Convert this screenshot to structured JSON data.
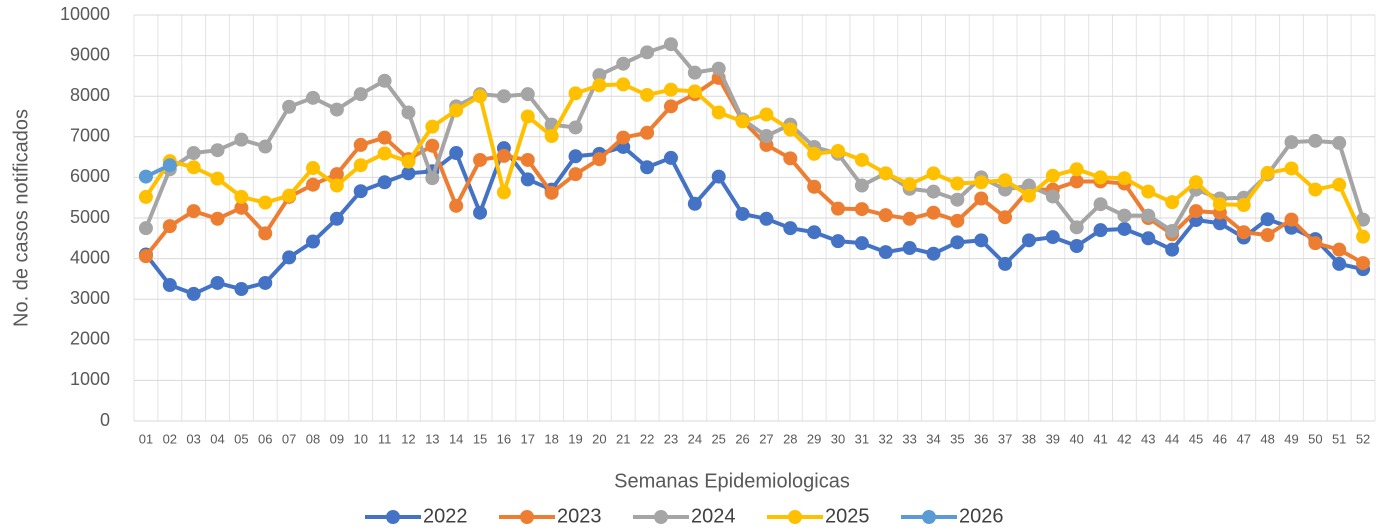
{
  "chart_data": {
    "type": "line",
    "x_label": "Semanas Epidemiologicas",
    "y_label": "No. de casos notificados",
    "categories": [
      "01",
      "02",
      "03",
      "04",
      "05",
      "06",
      "07",
      "08",
      "09",
      "10",
      "11",
      "12",
      "13",
      "14",
      "15",
      "16",
      "17",
      "18",
      "19",
      "20",
      "21",
      "22",
      "23",
      "24",
      "25",
      "26",
      "27",
      "28",
      "29",
      "30",
      "31",
      "32",
      "33",
      "34",
      "35",
      "36",
      "37",
      "38",
      "39",
      "40",
      "41",
      "42",
      "43",
      "44",
      "45",
      "46",
      "47",
      "48",
      "49",
      "50",
      "51",
      "52"
    ],
    "ylim": [
      0,
      10000
    ],
    "yticks": [
      0,
      1000,
      2000,
      3000,
      4000,
      5000,
      6000,
      7000,
      8000,
      9000,
      10000
    ],
    "grid": true,
    "legend": "bottom",
    "series": [
      {
        "name": "2022",
        "color": "#4472c4",
        "values": [
          4100,
          3350,
          3130,
          3400,
          3250,
          3400,
          4030,
          4420,
          4980,
          5660,
          5880,
          6100,
          6150,
          6600,
          5130,
          6720,
          5950,
          5700,
          6520,
          6580,
          6750,
          6250,
          6480,
          5350,
          6020,
          5100,
          4980,
          4750,
          4650,
          4430,
          4380,
          4160,
          4260,
          4120,
          4400,
          4450,
          3870,
          4450,
          4530,
          4310,
          4700,
          4730,
          4500,
          4220,
          4950,
          4870,
          4520,
          4970,
          4760,
          4480,
          3870,
          3740
        ]
      },
      {
        "name": "2023",
        "color": "#ed7d31",
        "values": [
          4060,
          4800,
          5170,
          4980,
          5250,
          4620,
          5520,
          5820,
          6080,
          6800,
          6980,
          6450,
          6780,
          5300,
          6430,
          6530,
          6430,
          5620,
          6080,
          6450,
          6980,
          7100,
          7750,
          8050,
          8450,
          7400,
          6800,
          6470,
          5770,
          5230,
          5220,
          5070,
          4980,
          5130,
          4930,
          5480,
          5020,
          5700,
          5700,
          5900,
          5900,
          5850,
          5000,
          4600,
          5170,
          5130,
          4650,
          4580,
          4960,
          4380,
          4220,
          3890
        ]
      },
      {
        "name": "2024",
        "color": "#a5a5a5",
        "values": [
          4750,
          6200,
          6600,
          6670,
          6930,
          6760,
          7740,
          7960,
          7670,
          8050,
          8380,
          7600,
          5980,
          7750,
          8050,
          8000,
          8050,
          7300,
          7230,
          8520,
          8800,
          9080,
          9280,
          8580,
          8680,
          7430,
          7020,
          7300,
          6750,
          6580,
          5800,
          6100,
          5720,
          5650,
          5450,
          6000,
          5700,
          5800,
          5530,
          4770,
          5340,
          5060,
          5060,
          4680,
          5700,
          5480,
          5500,
          6070,
          6870,
          6900,
          6850,
          4960
        ]
      },
      {
        "name": "2025",
        "color": "#ffc000",
        "values": [
          5520,
          6400,
          6250,
          5970,
          5520,
          5380,
          5550,
          6230,
          5800,
          6300,
          6590,
          6390,
          7250,
          7650,
          8000,
          5630,
          7500,
          7020,
          8070,
          8270,
          8290,
          8030,
          8160,
          8120,
          7600,
          7380,
          7550,
          7180,
          6580,
          6650,
          6430,
          6100,
          5830,
          6100,
          5850,
          5880,
          5930,
          5550,
          6040,
          6200,
          6000,
          5980,
          5650,
          5390,
          5880,
          5340,
          5320,
          6110,
          6220,
          5700,
          5820,
          4540
        ]
      },
      {
        "name": "2026",
        "color": "#5b9bd5",
        "values": [
          6020,
          6300,
          null,
          null,
          null,
          null,
          null,
          null,
          null,
          null,
          null,
          null,
          null,
          null,
          null,
          null,
          null,
          null,
          null,
          null,
          null,
          null,
          null,
          null,
          null,
          null,
          null,
          null,
          null,
          null,
          null,
          null,
          null,
          null,
          null,
          null,
          null,
          null,
          null,
          null,
          null,
          null,
          null,
          null,
          null,
          null,
          null,
          null,
          null,
          null,
          null,
          null
        ]
      }
    ]
  }
}
